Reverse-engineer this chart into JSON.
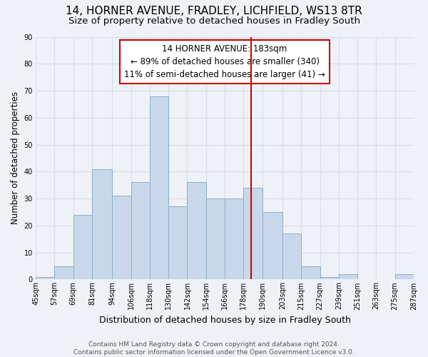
{
  "title": "14, HORNER AVENUE, FRADLEY, LICHFIELD, WS13 8TR",
  "subtitle": "Size of property relative to detached houses in Fradley South",
  "xlabel": "Distribution of detached houses by size in Fradley South",
  "ylabel": "Number of detached properties",
  "bin_edges": [
    45,
    57,
    69,
    81,
    94,
    106,
    118,
    130,
    142,
    154,
    166,
    178,
    190,
    203,
    215,
    227,
    239,
    251,
    263,
    275,
    287
  ],
  "bar_heights": [
    1,
    5,
    24,
    41,
    31,
    36,
    68,
    27,
    36,
    30,
    30,
    34,
    25,
    17,
    5,
    1,
    2,
    0,
    0,
    2
  ],
  "bar_color": "#c8d8ea",
  "bar_edge_color": "#8aaec8",
  "vline_x": 183,
  "vline_color": "#cc0000",
  "annotation_text": "14 HORNER AVENUE: 183sqm\n← 89% of detached houses are smaller (340)\n11% of semi-detached houses are larger (41) →",
  "annotation_box_color": "white",
  "annotation_box_edge": "#cc0000",
  "ylim": [
    0,
    90
  ],
  "yticks": [
    0,
    10,
    20,
    30,
    40,
    50,
    60,
    70,
    80,
    90
  ],
  "tick_labels": [
    "45sqm",
    "57sqm",
    "69sqm",
    "81sqm",
    "94sqm",
    "106sqm",
    "118sqm",
    "130sqm",
    "142sqm",
    "154sqm",
    "166sqm",
    "178sqm",
    "190sqm",
    "203sqm",
    "215sqm",
    "227sqm",
    "239sqm",
    "251sqm",
    "263sqm",
    "275sqm",
    "287sqm"
  ],
  "footer_text": "Contains HM Land Registry data © Crown copyright and database right 2024.\nContains public sector information licensed under the Open Government Licence v3.0.",
  "bg_color": "#eef2f7",
  "grid_color": "#d8dde8",
  "title_fontsize": 11,
  "subtitle_fontsize": 9.5,
  "xlabel_fontsize": 9,
  "ylabel_fontsize": 8.5,
  "tick_fontsize": 7,
  "annotation_fontsize": 8.5,
  "footer_fontsize": 6.5
}
